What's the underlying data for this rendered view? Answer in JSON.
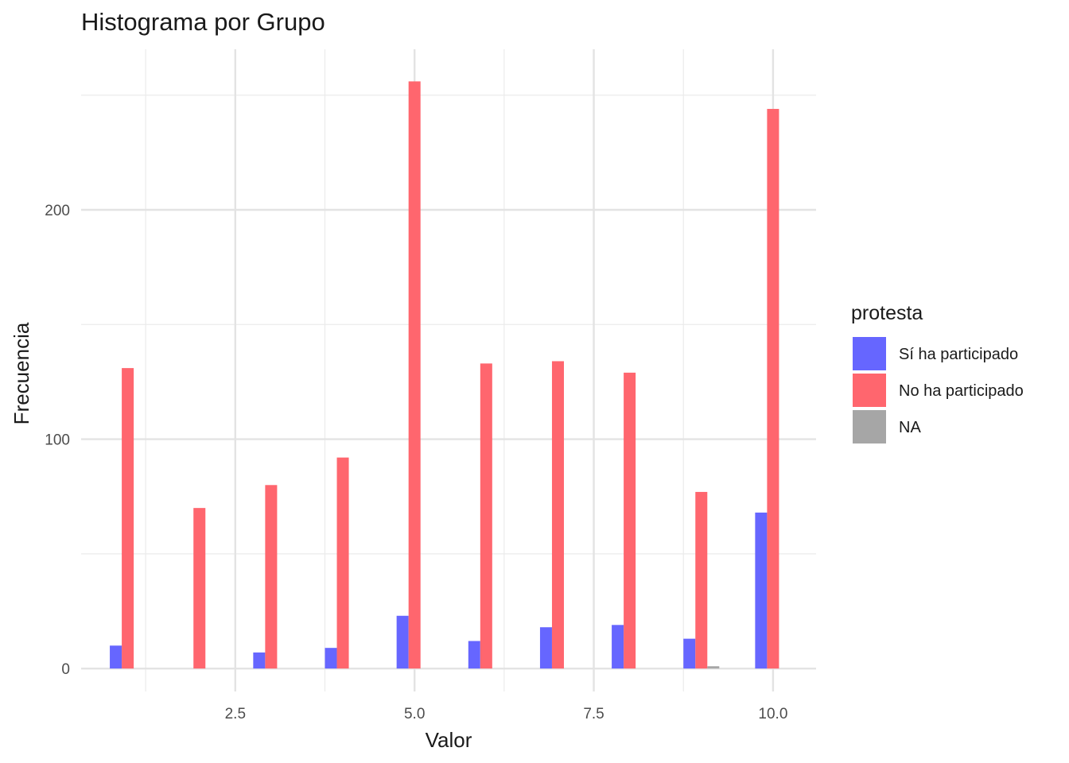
{
  "chart_data": {
    "type": "bar",
    "title": "Histograma por Grupo",
    "xlabel": "Valor",
    "ylabel": "Frecuencia",
    "xlim": [
      0.35,
      10.6
    ],
    "ylim": [
      -10,
      270
    ],
    "x_ticks": [
      2.5,
      5.0,
      7.5,
      10.0
    ],
    "x_tick_labels": [
      "2.5",
      "5.0",
      "7.5",
      "10.0"
    ],
    "y_ticks": [
      0,
      100,
      200
    ],
    "y_tick_labels": [
      "0",
      "100",
      "200"
    ],
    "grid": true,
    "legend": {
      "title": "protesta",
      "position": "right"
    },
    "bin_centers": [
      1,
      2,
      3,
      4,
      5,
      6,
      7,
      8,
      9,
      10
    ],
    "series": [
      {
        "name": "Sí ha participado",
        "color": "#6666ff",
        "values": [
          10,
          0,
          7,
          9,
          23,
          12,
          18,
          19,
          13,
          68
        ]
      },
      {
        "name": "No ha participado",
        "color": "#ff666e",
        "values": [
          131,
          70,
          80,
          92,
          256,
          133,
          134,
          129,
          77,
          244
        ]
      },
      {
        "name": "NA",
        "color": "#a6a6a6",
        "values": [
          0,
          0,
          0,
          0,
          0,
          0,
          0,
          0,
          1,
          0
        ]
      }
    ]
  }
}
